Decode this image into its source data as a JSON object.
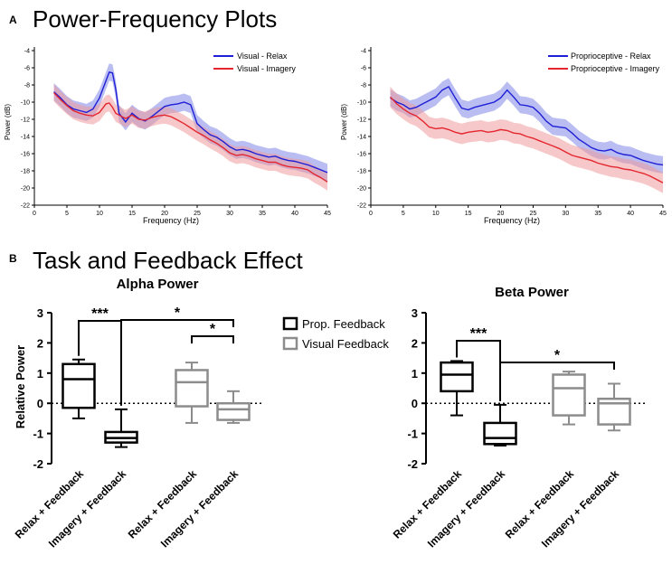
{
  "panel_a": {
    "letter": "A",
    "title": "Power-Frequency Plots",
    "plots": [
      {
        "id": "visual",
        "ylabel": "Power (dB)",
        "xlabel": "Frequency (Hz)",
        "yticks": [
          -4,
          -6,
          -8,
          -10,
          -12,
          -14,
          -16,
          -18,
          -20,
          -22
        ],
        "xticks": [
          0,
          5,
          10,
          15,
          20,
          25,
          30,
          35,
          40,
          45
        ],
        "legend": [
          "Visual - Relax",
          "Visual - Imagery"
        ]
      },
      {
        "id": "proprioceptive",
        "ylabel": "Power (dB)",
        "xlabel": "Frequency (Hz)",
        "yticks": [
          -4,
          -6,
          -8,
          -10,
          -12,
          -14,
          -16,
          -18,
          -20,
          -22
        ],
        "xticks": [
          0,
          5,
          10,
          15,
          20,
          25,
          30,
          35,
          40,
          45
        ],
        "legend": [
          "Proprioceptive - Relax",
          "Proprioceptive - Imagery"
        ]
      }
    ]
  },
  "panel_b": {
    "letter": "B",
    "title": "Task and Feedback Effect",
    "ylabel": "Relative Power",
    "yticks": [
      "3",
      "2",
      "1",
      "0",
      "-1",
      "-2"
    ],
    "legend": [
      "Prop. Feedback",
      "Visual Feedback"
    ],
    "plots": [
      {
        "id": "alpha",
        "title": "Alpha Power",
        "categories": [
          "Relax + Feedback",
          "Imagery + Feedback",
          "Relax + Feedback",
          "Imagery + Feedback"
        ],
        "sig1": "***",
        "sig2": "*",
        "sig3": "*"
      },
      {
        "id": "beta",
        "title": "Beta Power",
        "categories": [
          "Relax + Feedback",
          "Imagery + Feedback",
          "Relax + Feedback",
          "Imagery + Feedback"
        ],
        "sig1": "***",
        "sig2": "*"
      }
    ]
  },
  "colors": {
    "relax": "#1f1fd6",
    "relax_band": "#7f86e6",
    "imagery": "#e3262f",
    "imagery_band": "#f19a9c",
    "prop": "#000000",
    "visual": "#8c8c8c"
  },
  "chart_data": [
    {
      "type": "line",
      "title": "Power-Frequency Plots",
      "xlabel": "Frequency (Hz)",
      "ylabel": "Power (dB)",
      "xlim": [
        0,
        45
      ],
      "ylim": [
        -22,
        -4
      ],
      "series": [
        {
          "name": "Visual - Relax",
          "x": [
            3,
            4,
            5,
            6,
            7,
            8,
            9,
            10,
            11,
            11.5,
            12,
            12.5,
            13,
            14,
            15,
            16,
            17,
            18,
            19,
            20,
            21,
            22,
            23,
            24,
            25,
            26,
            27,
            28,
            29,
            30,
            31,
            32,
            33,
            34,
            35,
            36,
            37,
            38,
            39,
            40,
            41,
            42,
            43,
            44,
            45
          ],
          "y": [
            -8.8,
            -9.5,
            -10.3,
            -10.8,
            -11,
            -11.2,
            -10.8,
            -9.5,
            -7.5,
            -6.5,
            -6.6,
            -8.5,
            -11.3,
            -12.3,
            -11.3,
            -11.9,
            -12.2,
            -11.7,
            -11.1,
            -10.5,
            -10.3,
            -10.2,
            -10,
            -10.3,
            -12.5,
            -13.2,
            -13.8,
            -14.1,
            -14.6,
            -15.2,
            -15.6,
            -15.5,
            -15.7,
            -16,
            -16.2,
            -16.4,
            -16.3,
            -16.6,
            -16.8,
            -16.9,
            -17.1,
            -17.3,
            -17.6,
            -17.9,
            -18.2
          ],
          "band": 1.0
        },
        {
          "name": "Visual - Imagery",
          "x": [
            3,
            4,
            5,
            6,
            7,
            8,
            9,
            10,
            11,
            11.5,
            12,
            12.5,
            13,
            14,
            15,
            16,
            17,
            18,
            19,
            20,
            21,
            22,
            23,
            24,
            25,
            26,
            27,
            28,
            29,
            30,
            31,
            32,
            33,
            34,
            35,
            36,
            37,
            38,
            39,
            40,
            41,
            42,
            43,
            44,
            45
          ],
          "y": [
            -8.9,
            -9.7,
            -10.4,
            -11,
            -11.3,
            -11.5,
            -11.6,
            -11.2,
            -10.2,
            -10.1,
            -10.6,
            -11.3,
            -11.5,
            -11.9,
            -11.5,
            -12,
            -12.1,
            -11.8,
            -11.6,
            -11.5,
            -11.7,
            -12.1,
            -12.5,
            -13,
            -13.5,
            -13.9,
            -14.4,
            -14.8,
            -15.3,
            -15.9,
            -16.2,
            -16.1,
            -16.3,
            -16.6,
            -16.8,
            -17,
            -17,
            -17.3,
            -17.5,
            -17.6,
            -17.7,
            -17.9,
            -18.4,
            -18.8,
            -19.3
          ],
          "band": 1.0
        }
      ]
    },
    {
      "type": "line",
      "title": "Power-Frequency Plots",
      "xlabel": "Frequency (Hz)",
      "ylabel": "Power (dB)",
      "xlim": [
        0,
        45
      ],
      "ylim": [
        -22,
        -4
      ],
      "series": [
        {
          "name": "Proprioceptive - Relax",
          "x": [
            3,
            4,
            5,
            6,
            7,
            8,
            9,
            10,
            11,
            12,
            13,
            14,
            15,
            16,
            17,
            18,
            19,
            20,
            21,
            22,
            23,
            24,
            25,
            26,
            27,
            28,
            29,
            30,
            31,
            32,
            33,
            34,
            35,
            36,
            37,
            38,
            39,
            40,
            41,
            42,
            43,
            44,
            45
          ],
          "y": [
            -9.5,
            -10,
            -10.3,
            -10.8,
            -10.6,
            -10.2,
            -9.8,
            -9.4,
            -8.6,
            -8.2,
            -9.5,
            -10.7,
            -10.9,
            -10.6,
            -10.4,
            -10.2,
            -10,
            -9.5,
            -8.6,
            -9.4,
            -10.3,
            -10.4,
            -10.6,
            -11.3,
            -12.2,
            -12.8,
            -12.9,
            -13,
            -13.6,
            -14.3,
            -14.8,
            -15.3,
            -15.6,
            -15.7,
            -15.5,
            -15.9,
            -16.1,
            -16.2,
            -16.5,
            -16.8,
            -17,
            -17.2,
            -17.3
          ],
          "band": 1.0
        },
        {
          "name": "Proprioceptive - Imagery",
          "x": [
            3,
            4,
            5,
            6,
            7,
            8,
            9,
            10,
            11,
            12,
            13,
            14,
            15,
            16,
            17,
            18,
            19,
            20,
            21,
            22,
            23,
            24,
            25,
            26,
            27,
            28,
            29,
            30,
            31,
            32,
            33,
            34,
            35,
            36,
            37,
            38,
            39,
            40,
            41,
            42,
            43,
            44,
            45
          ],
          "y": [
            -9.4,
            -10.2,
            -10.8,
            -11.3,
            -11.6,
            -12.2,
            -12.9,
            -13.1,
            -13,
            -13.2,
            -13.5,
            -13.7,
            -13.5,
            -13.4,
            -13.3,
            -13.5,
            -13.4,
            -13.2,
            -13.3,
            -13.6,
            -13.7,
            -14,
            -14.2,
            -14.5,
            -14.8,
            -15.1,
            -15.4,
            -15.8,
            -16.2,
            -16.4,
            -16.6,
            -16.8,
            -17.1,
            -17.3,
            -17.5,
            -17.6,
            -17.8,
            -17.9,
            -18.1,
            -18.3,
            -18.6,
            -19,
            -19.4
          ],
          "band": 1.2
        }
      ]
    },
    {
      "type": "box",
      "title": "Alpha Power",
      "ylabel": "Relative Power",
      "ylim": [
        -2,
        3
      ],
      "categories": [
        "Relax + Feedback",
        "Imagery + Feedback",
        "Relax + Feedback",
        "Imagery + Feedback"
      ],
      "groups": [
        "Prop. Feedback",
        "Prop. Feedback",
        "Visual Feedback",
        "Visual Feedback"
      ],
      "boxes": [
        {
          "min": -0.5,
          "q1": -0.15,
          "median": 0.8,
          "q3": 1.3,
          "max": 1.45
        },
        {
          "min": -1.45,
          "q1": -1.3,
          "median": -1.15,
          "q3": -0.95,
          "max": -0.2
        },
        {
          "min": -0.65,
          "q1": -0.1,
          "median": 0.7,
          "q3": 1.1,
          "max": 1.35
        },
        {
          "min": -0.65,
          "q1": -0.55,
          "median": -0.2,
          "q3": 0.0,
          "max": 0.4
        }
      ],
      "annotations": [
        {
          "from": 0,
          "to": 1,
          "label": "***"
        },
        {
          "from": 1,
          "to": 3,
          "label": "*"
        },
        {
          "from": 2,
          "to": 3,
          "label": "*"
        }
      ]
    },
    {
      "type": "box",
      "title": "Beta Power",
      "ylabel": "Relative Power",
      "ylim": [
        -2,
        3
      ],
      "categories": [
        "Relax + Feedback",
        "Imagery + Feedback",
        "Relax + Feedback",
        "Imagery + Feedback"
      ],
      "groups": [
        "Prop. Feedback",
        "Prop. Feedback",
        "Visual Feedback",
        "Visual Feedback"
      ],
      "boxes": [
        {
          "min": -0.4,
          "q1": 0.4,
          "median": 0.95,
          "q3": 1.35,
          "max": 1.4
        },
        {
          "min": -1.4,
          "q1": -1.35,
          "median": -1.15,
          "q3": -0.65,
          "max": -0.05
        },
        {
          "min": -0.7,
          "q1": -0.4,
          "median": 0.5,
          "q3": 0.95,
          "max": 1.05
        },
        {
          "min": -0.9,
          "q1": -0.7,
          "median": 0.0,
          "q3": 0.15,
          "max": 0.65
        }
      ],
      "annotations": [
        {
          "from": 0,
          "to": 1,
          "label": "***"
        },
        {
          "from": 1,
          "to": 3,
          "label": "*"
        }
      ]
    }
  ]
}
